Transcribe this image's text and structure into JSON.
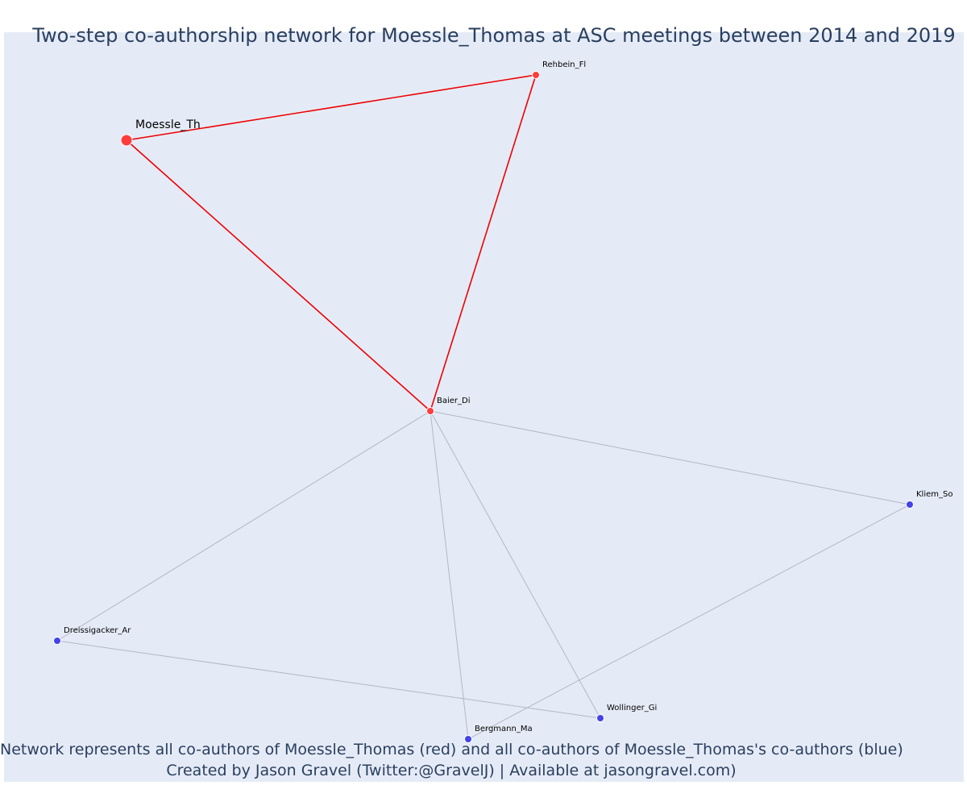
{
  "title": "Two-step co-authorship network for Moessle_Thomas at ASC meetings between 2014 and 2019",
  "annotations": {
    "line1": "Network represents all co-authors of Moessle_Thomas (red) and all co-authors of Moessle_Thomas's co-authors (blue)",
    "line2": "Created by Jason Gravel (Twitter:@GravelJ) | Available at jasongravel.com)"
  },
  "colors": {
    "plot_background": "#e5ebf6",
    "text": "#2a3f5f",
    "ego_node": "#ff3b3b",
    "coauthor_node": "#ff3b3b",
    "second_step_node": "#4343e8",
    "ego_edge": "#ee0000",
    "other_edge": "#b2b7c6"
  },
  "nodes": [
    {
      "id": "Moessle_Th",
      "label": "Moessle_Th",
      "group": "ego"
    },
    {
      "id": "Rehbein_Fl",
      "label": "Rehbein_Fl",
      "group": "coauthor"
    },
    {
      "id": "Baier_Di",
      "label": "Baier_Di",
      "group": "coauthor"
    },
    {
      "id": "Kliem_So",
      "label": "Kliem_So",
      "group": "second_step"
    },
    {
      "id": "Dreissigacker_Ar",
      "label": "Dreissigacker_Ar",
      "group": "second_step"
    },
    {
      "id": "Wollinger_Gi",
      "label": "Wollinger_Gi",
      "group": "second_step"
    },
    {
      "id": "Bergmann_Ma",
      "label": "Bergmann_Ma",
      "group": "second_step"
    }
  ],
  "edges": [
    {
      "source": "Moessle_Th",
      "target": "Rehbein_Fl",
      "type": "ego"
    },
    {
      "source": "Moessle_Th",
      "target": "Baier_Di",
      "type": "ego"
    },
    {
      "source": "Rehbein_Fl",
      "target": "Baier_Di",
      "type": "ego"
    },
    {
      "source": "Baier_Di",
      "target": "Kliem_So",
      "type": "other"
    },
    {
      "source": "Baier_Di",
      "target": "Dreissigacker_Ar",
      "type": "other"
    },
    {
      "source": "Baier_Di",
      "target": "Bergmann_Ma",
      "type": "other"
    },
    {
      "source": "Baier_Di",
      "target": "Wollinger_Gi",
      "type": "other"
    },
    {
      "source": "Kliem_So",
      "target": "Bergmann_Ma",
      "type": "other"
    },
    {
      "source": "Dreissigacker_Ar",
      "target": "Wollinger_Gi",
      "type": "other"
    }
  ]
}
